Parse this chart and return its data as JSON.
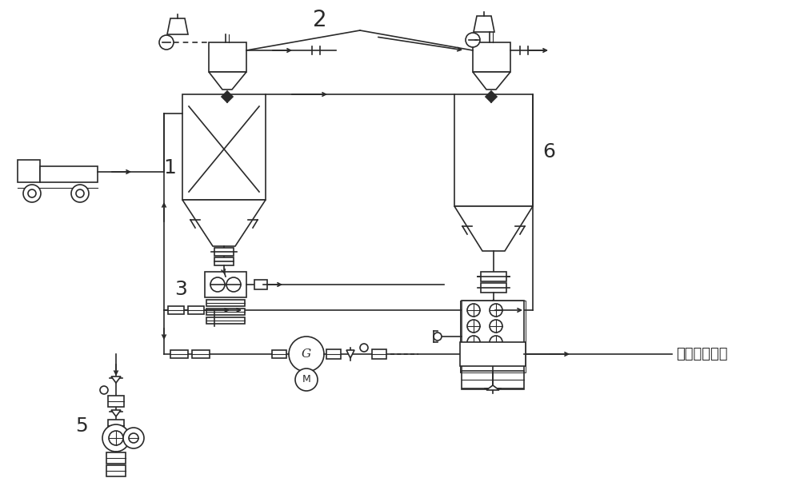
{
  "bg_color": "#ffffff",
  "line_color": "#2a2a2a",
  "label_1": "1",
  "label_2": "2",
  "label_3": "3",
  "label_5": "5",
  "label_6": "6",
  "label_arrow": "窑头主燃烧器",
  "label_fontsize": 18,
  "small_fontsize": 8
}
